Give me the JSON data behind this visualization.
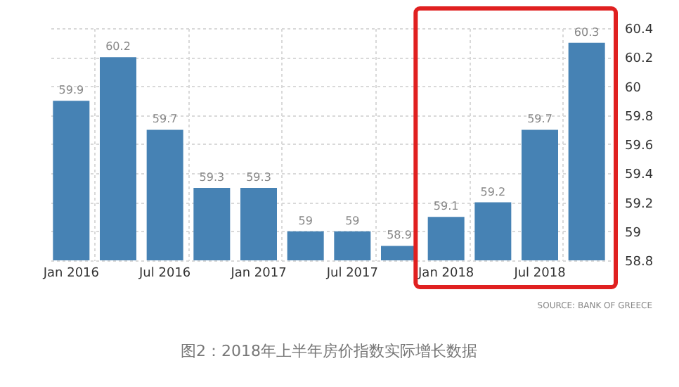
{
  "chart_data": {
    "type": "bar",
    "title": "图2：2018年上半年房价指数实际增长数据",
    "categories": [
      "Jan 2016",
      null,
      "Jul 2016",
      null,
      "Jan 2017",
      null,
      "Jul 2017",
      null,
      "Jan 2018",
      null,
      "Jul 2018",
      null
    ],
    "values": [
      59.9,
      60.2,
      59.7,
      59.3,
      59.3,
      59,
      59,
      58.9,
      59.1,
      59.2,
      59.7,
      60.3
    ],
    "color": "#4682b4",
    "ylim": [
      58.8,
      60.4
    ],
    "yticks": [
      58.8,
      59,
      59.2,
      59.4,
      59.6,
      59.8,
      60,
      60.2,
      60.4
    ],
    "grid": true,
    "data_labels": true,
    "annotations": [
      "SOURCE: BANK OF GREECE"
    ]
  }
}
